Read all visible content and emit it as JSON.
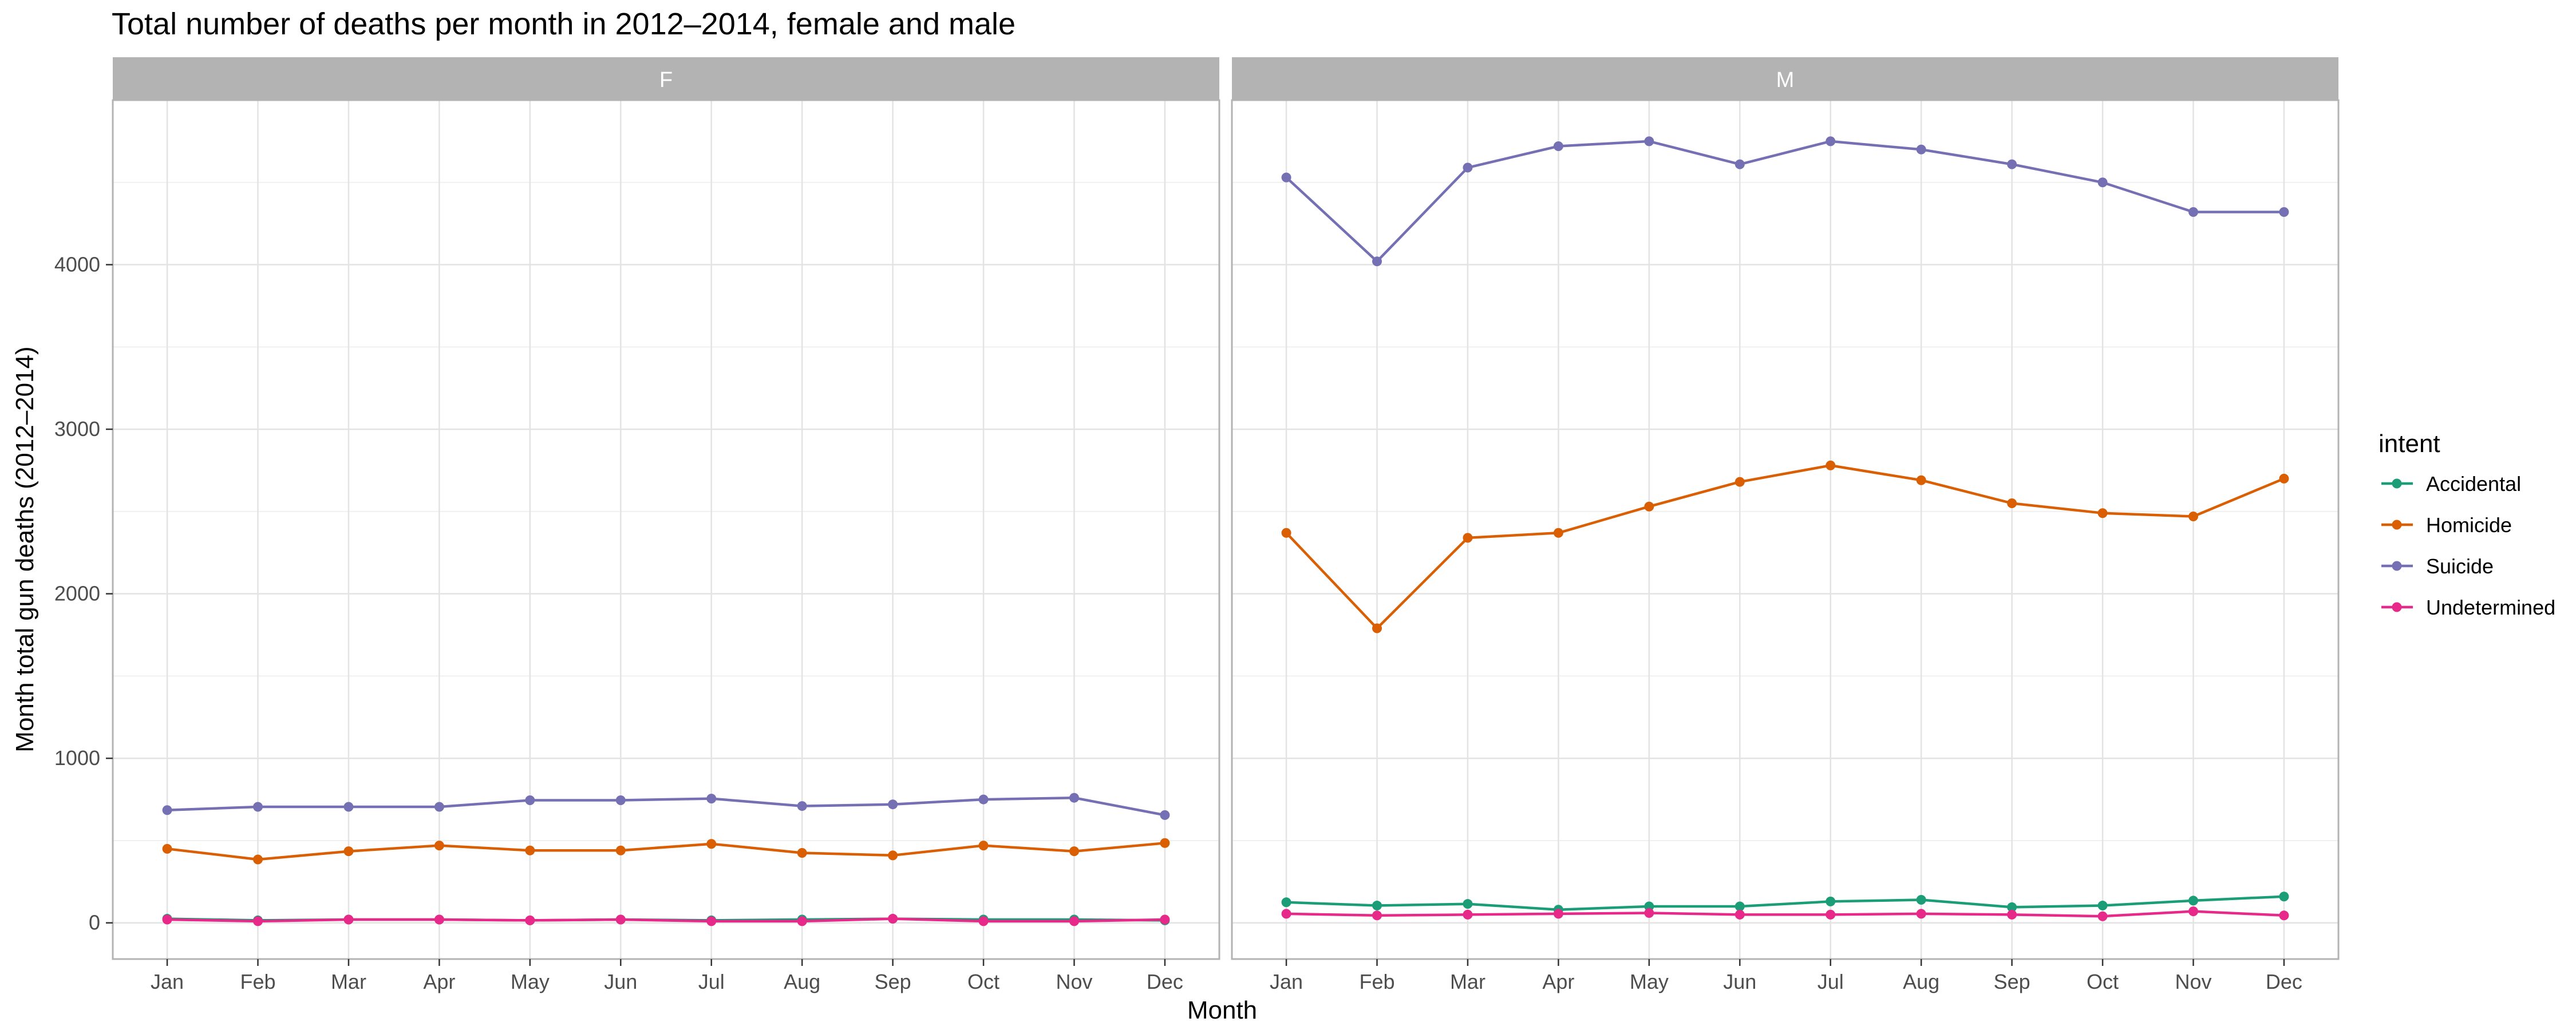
{
  "chart_data": {
    "type": "line",
    "title": "Total number of deaths per month in 2012–2014, female and male",
    "xlabel": "Month",
    "ylabel": "Month total gun deaths (2012–2014)",
    "x": [
      "Jan",
      "Feb",
      "Mar",
      "Apr",
      "May",
      "Jun",
      "Jul",
      "Aug",
      "Sep",
      "Oct",
      "Nov",
      "Dec"
    ],
    "ylim": [
      -220,
      5000
    ],
    "yticks": [
      0,
      1000,
      2000,
      3000,
      4000
    ],
    "grid": true,
    "legend": {
      "title": "intent",
      "placement": "right",
      "entries": [
        "Accidental",
        "Homicide",
        "Suicide",
        "Undetermined"
      ]
    },
    "colors": {
      "Accidental": "#1b9e77",
      "Homicide": "#d95f02",
      "Suicide": "#7570b3",
      "Undetermined": "#e7298a"
    },
    "panels": [
      {
        "label": "F",
        "series": [
          {
            "name": "Accidental",
            "values": [
              25,
              15,
              20,
              20,
              15,
              20,
              15,
              20,
              25,
              20,
              20,
              15
            ]
          },
          {
            "name": "Homicide",
            "values": [
              450,
              385,
              435,
              470,
              440,
              440,
              480,
              425,
              410,
              470,
              435,
              485
            ]
          },
          {
            "name": "Suicide",
            "values": [
              685,
              705,
              705,
              705,
              745,
              745,
              755,
              710,
              720,
              750,
              760,
              655
            ]
          },
          {
            "name": "Undetermined",
            "values": [
              20,
              10,
              20,
              20,
              15,
              20,
              10,
              10,
              25,
              10,
              10,
              20
            ]
          }
        ]
      },
      {
        "label": "M",
        "series": [
          {
            "name": "Accidental",
            "values": [
              125,
              105,
              115,
              80,
              100,
              100,
              130,
              140,
              95,
              105,
              135,
              160
            ]
          },
          {
            "name": "Homicide",
            "values": [
              2370,
              1790,
              2340,
              2370,
              2530,
              2680,
              2780,
              2690,
              2550,
              2490,
              2470,
              2700
            ]
          },
          {
            "name": "Suicide",
            "values": [
              4530,
              4020,
              4590,
              4720,
              4750,
              4610,
              4750,
              4700,
              4610,
              4500,
              4320,
              4320
            ]
          },
          {
            "name": "Undetermined",
            "values": [
              55,
              45,
              50,
              55,
              60,
              50,
              50,
              55,
              50,
              40,
              70,
              45
            ]
          }
        ]
      }
    ]
  }
}
